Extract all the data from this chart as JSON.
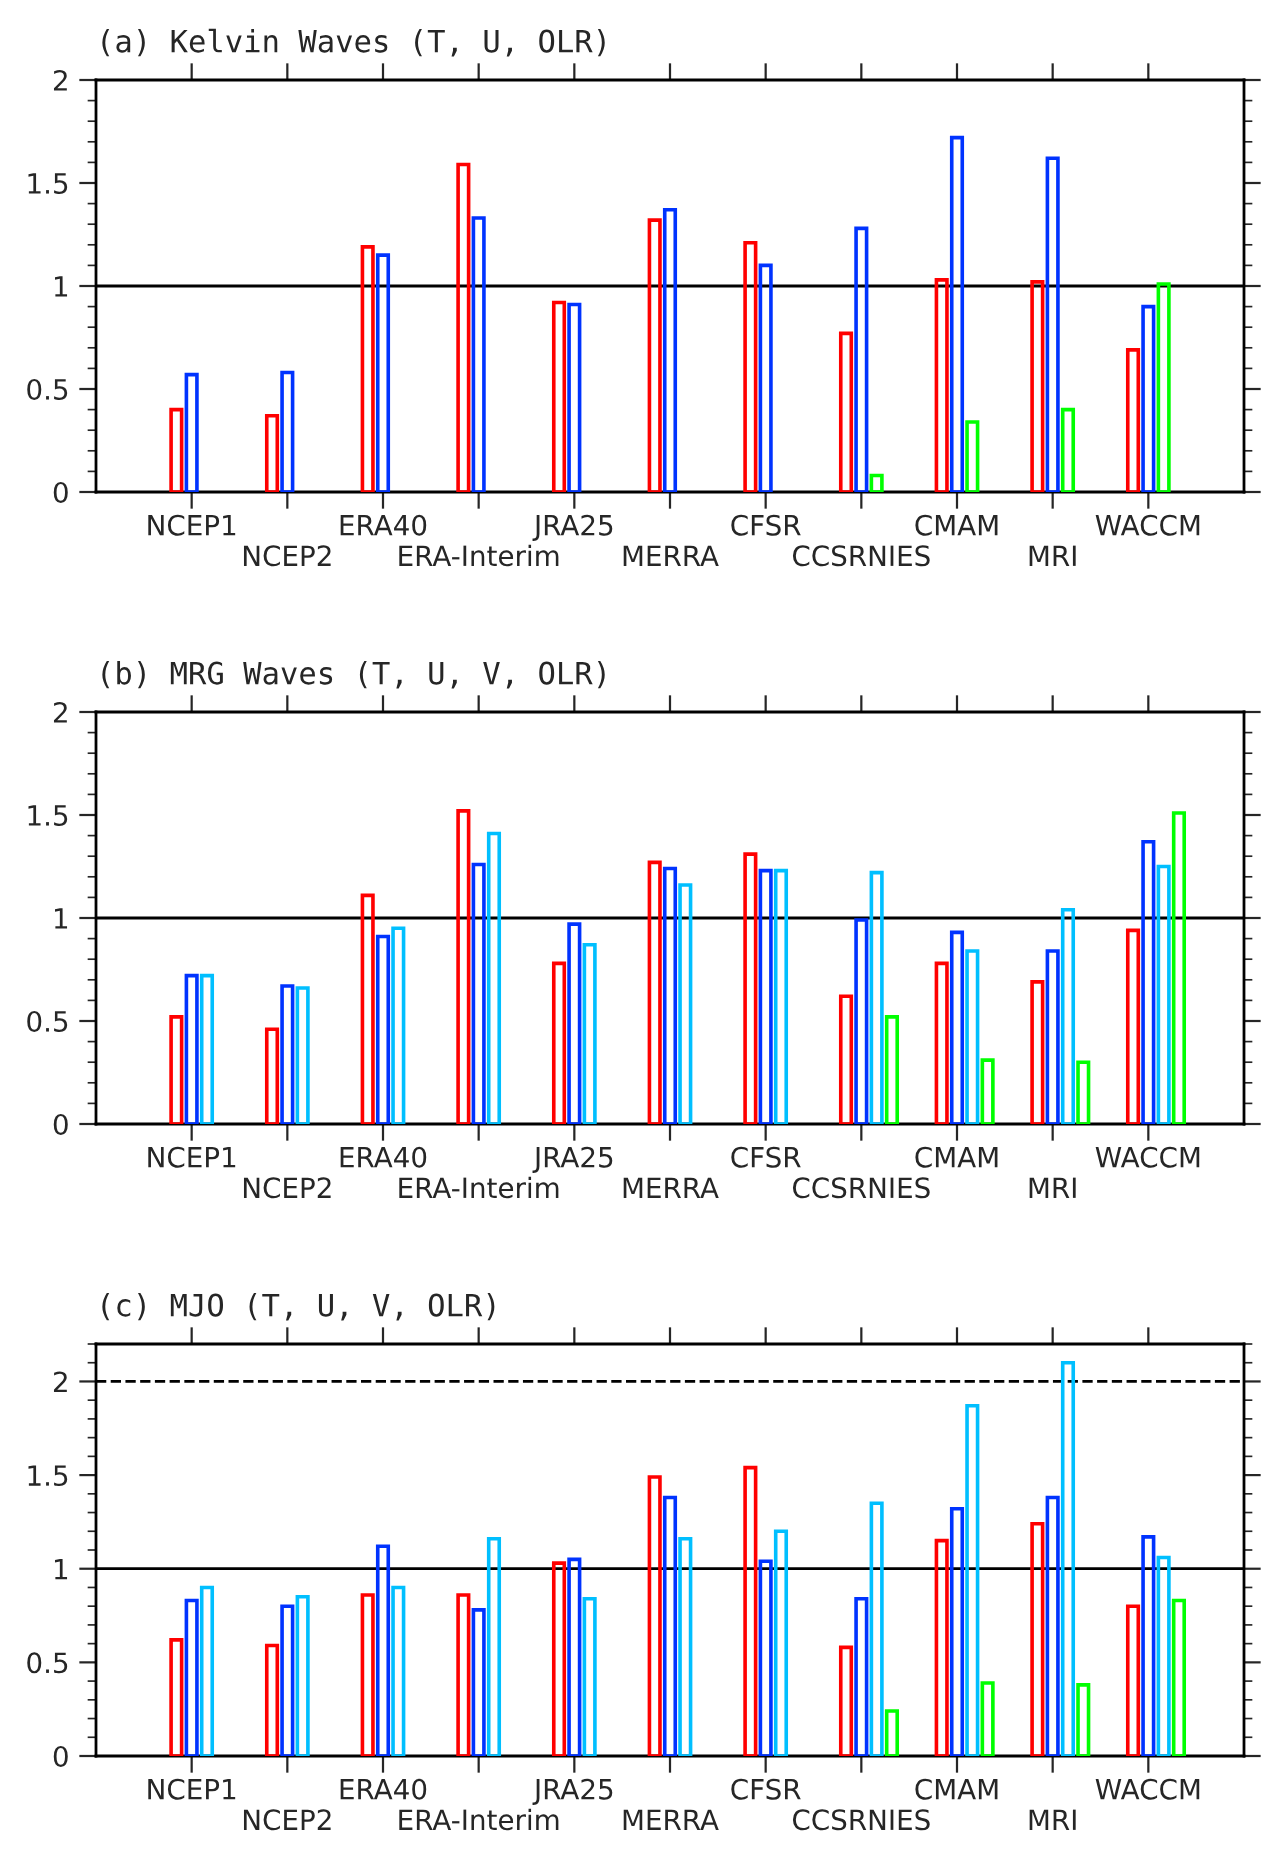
{
  "chart_data": [
    {
      "type": "bar",
      "title": "(a) Kelvin Waves (T, U, OLR)",
      "categories": [
        "NCEP1",
        "NCEP2",
        "ERA40",
        "ERA-Interim",
        "JRA25",
        "MERRA",
        "CFSR",
        "CCSRNIES",
        "CMAM",
        "MRI",
        "WACCM"
      ],
      "series": [
        {
          "color": "#ff0000",
          "values": [
            0.4,
            0.37,
            1.19,
            1.59,
            0.92,
            1.32,
            1.21,
            0.77,
            1.03,
            1.02,
            0.69
          ]
        },
        {
          "color": "#0033ff",
          "values": [
            0.57,
            0.58,
            1.15,
            1.33,
            0.91,
            1.37,
            1.1,
            1.28,
            1.72,
            1.62,
            0.9
          ]
        },
        {
          "color": "#00ff00",
          "values": [
            null,
            null,
            null,
            null,
            null,
            null,
            null,
            0.08,
            0.34,
            0.4,
            1.01
          ]
        }
      ],
      "ylim": [
        0,
        2
      ],
      "yticks": [
        0,
        0.5,
        1,
        1.5,
        2
      ],
      "ref_lines": [
        {
          "axis": "y",
          "value": 1,
          "line_style": "solid"
        }
      ]
    },
    {
      "type": "bar",
      "title": "(b) MRG Waves (T, U, V, OLR)",
      "categories": [
        "NCEP1",
        "NCEP2",
        "ERA40",
        "ERA-Interim",
        "JRA25",
        "MERRA",
        "CFSR",
        "CCSRNIES",
        "CMAM",
        "MRI",
        "WACCM"
      ],
      "series": [
        {
          "color": "#ff0000",
          "values": [
            0.52,
            0.46,
            1.11,
            1.52,
            0.78,
            1.27,
            1.31,
            0.62,
            0.78,
            0.69,
            0.94
          ]
        },
        {
          "color": "#0033ff",
          "values": [
            0.72,
            0.67,
            0.91,
            1.26,
            0.97,
            1.24,
            1.23,
            0.99,
            0.93,
            0.84,
            1.37
          ]
        },
        {
          "color": "#00bfff",
          "values": [
            0.72,
            0.66,
            0.95,
            1.41,
            0.87,
            1.16,
            1.23,
            1.22,
            0.84,
            1.04,
            1.25
          ]
        },
        {
          "color": "#00ff00",
          "values": [
            null,
            null,
            null,
            null,
            null,
            null,
            null,
            0.52,
            0.31,
            0.3,
            1.51
          ]
        }
      ],
      "ylim": [
        0,
        2
      ],
      "yticks": [
        0,
        0.5,
        1,
        1.5,
        2
      ],
      "ref_lines": [
        {
          "axis": "y",
          "value": 1,
          "line_style": "solid"
        }
      ]
    },
    {
      "type": "bar",
      "title": "(c) MJO (T, U, V, OLR)",
      "categories": [
        "NCEP1",
        "NCEP2",
        "ERA40",
        "ERA-Interim",
        "JRA25",
        "MERRA",
        "CFSR",
        "CCSRNIES",
        "CMAM",
        "MRI",
        "WACCM"
      ],
      "series": [
        {
          "color": "#ff0000",
          "values": [
            0.62,
            0.59,
            0.86,
            0.86,
            1.03,
            1.49,
            1.54,
            0.58,
            1.15,
            1.24,
            0.8
          ]
        },
        {
          "color": "#0033ff",
          "values": [
            0.83,
            0.8,
            1.12,
            0.78,
            1.05,
            1.38,
            1.04,
            0.84,
            1.32,
            1.38,
            1.17
          ]
        },
        {
          "color": "#00bfff",
          "values": [
            0.9,
            0.85,
            0.9,
            1.16,
            0.84,
            1.16,
            1.2,
            1.35,
            1.87,
            2.1,
            1.06
          ]
        },
        {
          "color": "#00ff00",
          "values": [
            null,
            null,
            null,
            null,
            null,
            null,
            null,
            0.24,
            0.39,
            0.38,
            0.83
          ]
        }
      ],
      "ylim": [
        0,
        2.2
      ],
      "yticks": [
        0,
        0.5,
        1,
        1.5,
        2
      ],
      "ref_lines": [
        {
          "axis": "y",
          "value": 1,
          "line_style": "solid"
        },
        {
          "axis": "y",
          "value": 2,
          "line_style": "dashed"
        }
      ]
    }
  ]
}
